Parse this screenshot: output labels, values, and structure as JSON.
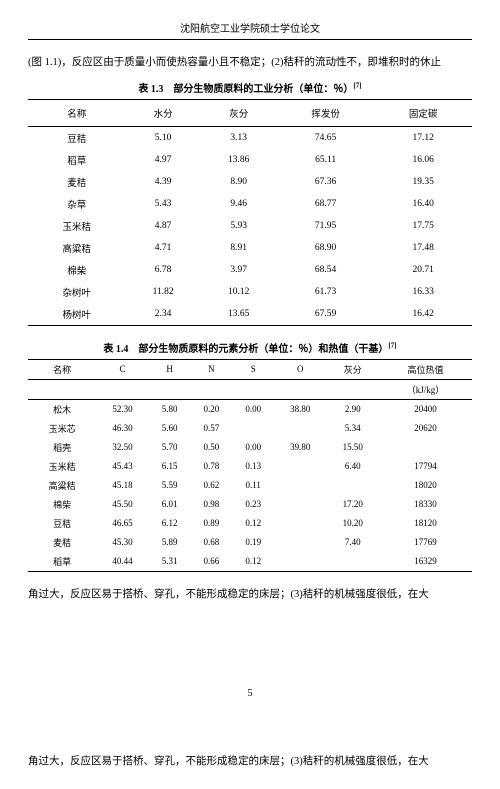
{
  "header": "沈阳航空工业学院硕士学位论文",
  "para1": "(图 1.1)，反应区由于质量小而使热容量小且不稳定；(2)秸秆的流动性不，即堆积时的休止",
  "table1": {
    "caption": "表 1.3　部分生物质原料的工业分析（单位：％）",
    "sup": "[7]",
    "headers": [
      "名称",
      "水分",
      "灰分",
      "挥发份",
      "固定碳"
    ],
    "rows": [
      [
        "豆秸",
        "5.10",
        "3.13",
        "74.65",
        "17.12"
      ],
      [
        "稻草",
        "4.97",
        "13.86",
        "65.11",
        "16.06"
      ],
      [
        "麦秸",
        "4.39",
        "8.90",
        "67.36",
        "19.35"
      ],
      [
        "杂草",
        "5.43",
        "9.46",
        "68.77",
        "16.40"
      ],
      [
        "玉米秸",
        "4.87",
        "5.93",
        "71.95",
        "17.75"
      ],
      [
        "高粱秸",
        "4.71",
        "8.91",
        "68.90",
        "17.48"
      ],
      [
        "棉柴",
        "6.78",
        "3.97",
        "68.54",
        "20.71"
      ],
      [
        "杂树叶",
        "11.82",
        "10.12",
        "61.73",
        "16.33"
      ],
      [
        "杨树叶",
        "2.34",
        "13.65",
        "67.59",
        "16.42"
      ]
    ]
  },
  "table2": {
    "caption": "表 1.4　部分生物质原料的元素分析（单位：％）和热值（干基）",
    "sup": "[7]",
    "headers1": [
      "名称",
      "C",
      "H",
      "N",
      "S",
      "O",
      "灰分",
      "高位热值"
    ],
    "headers2": [
      "",
      "",
      "",
      "",
      "",
      "",
      "",
      "（kJ/kg）"
    ],
    "rows": [
      [
        "松木",
        "52.30",
        "5.80",
        "0.20",
        "0.00",
        "38.80",
        "2.90",
        "20400"
      ],
      [
        "玉米芯",
        "46.30",
        "5.60",
        "0.57",
        "",
        "",
        "5.34",
        "20620"
      ],
      [
        "稻壳",
        "32.50",
        "5.70",
        "0.50",
        "0.00",
        "39.80",
        "15.50",
        ""
      ],
      [
        "玉米秸",
        "45.43",
        "6.15",
        "0.78",
        "0.13",
        "",
        "6.40",
        "17794"
      ],
      [
        "高粱秸",
        "45.18",
        "5.59",
        "0.62",
        "0.11",
        "",
        "",
        "18020"
      ],
      [
        "棉柴",
        "45.50",
        "6.01",
        "0.98",
        "0.23",
        "",
        "17.20",
        "18330"
      ],
      [
        "豆秸",
        "46.65",
        "6.12",
        "0.89",
        "0.12",
        "",
        "10.20",
        "18120"
      ],
      [
        "麦秸",
        "45.30",
        "5.89",
        "0.68",
        "0.19",
        "",
        "7.40",
        "17769"
      ],
      [
        "稻草",
        "40.44",
        "5.31",
        "0.66",
        "0.12",
        "",
        "",
        "16329"
      ]
    ]
  },
  "para2": "角过大，反应区易于搭桥、穿孔，不能形成稳定的床层；(3)秸秆的机械强度很低，在大",
  "pageNum": "5",
  "footerPara": "角过大，反应区易于搭桥、穿孔，不能形成稳定的床层；(3)秸秆的机械强度很低，在大"
}
